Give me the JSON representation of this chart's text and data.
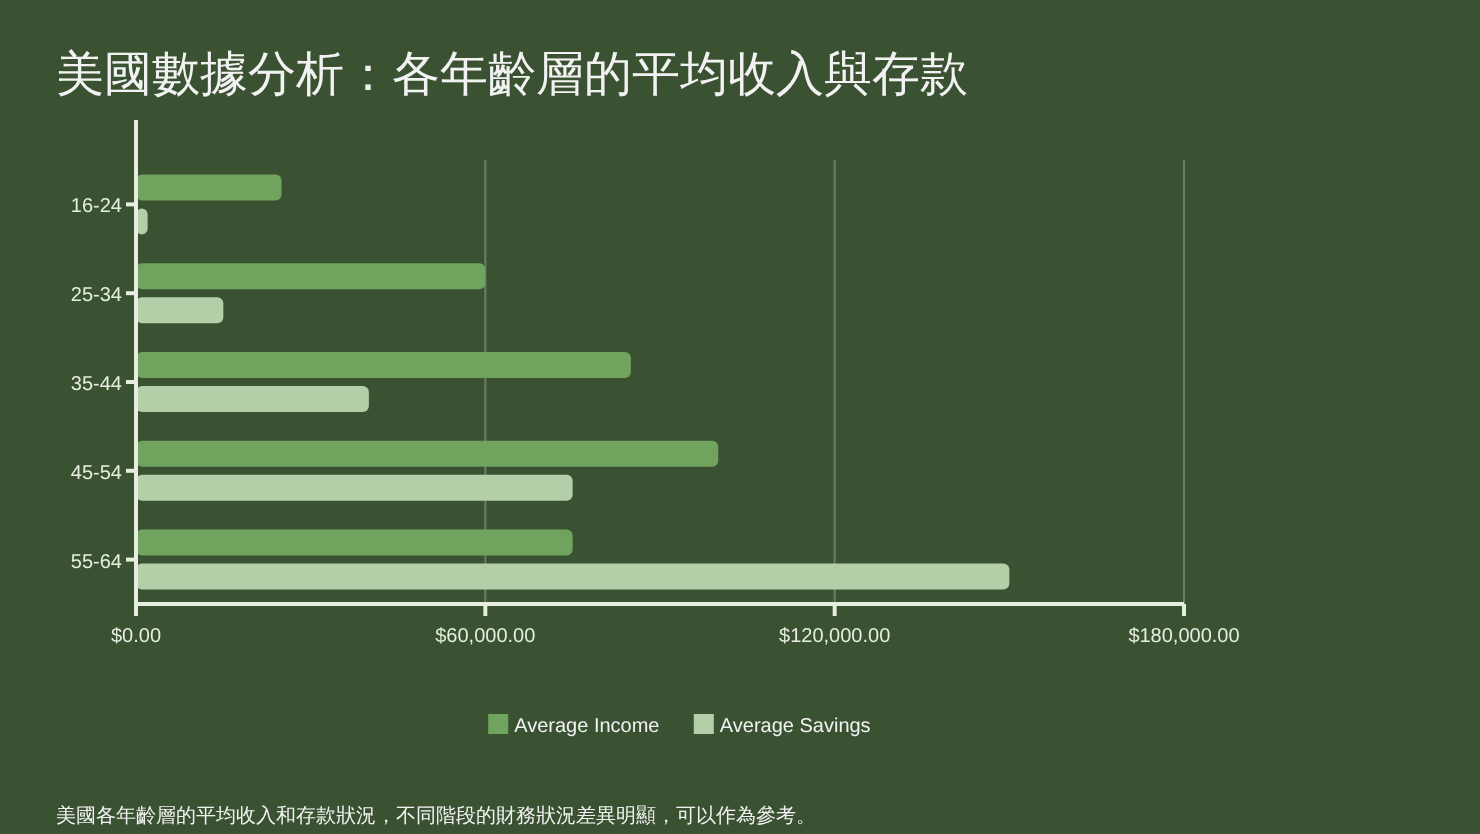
{
  "chart_data": {
    "type": "bar",
    "orientation": "horizontal",
    "title": "美國數據分析：各年齡層的平均收入與存款",
    "categories": [
      "16-24",
      "25-34",
      "35-44",
      "45-54",
      "55-64"
    ],
    "series": [
      {
        "name": "Average Income",
        "color": "#6fa35e",
        "values": [
          25000,
          60000,
          85000,
          100000,
          75000
        ]
      },
      {
        "name": "Average Savings",
        "color": "#b3cfa8",
        "values": [
          2000,
          15000,
          40000,
          75000,
          150000
        ]
      }
    ],
    "xlim": [
      0,
      180000
    ],
    "xticks": [
      {
        "value": 0,
        "label": "$0.00"
      },
      {
        "value": 60000,
        "label": "$60,000.00"
      },
      {
        "value": 120000,
        "label": "$120,000.00"
      },
      {
        "value": 180000,
        "label": "$180,000.00"
      }
    ],
    "grid": "x",
    "legend": "bottom",
    "annotations": [
      "美國各年齡層的平均收入和存款狀況，不同階段的財務狀況差異明顯，可以作為參考。"
    ]
  }
}
